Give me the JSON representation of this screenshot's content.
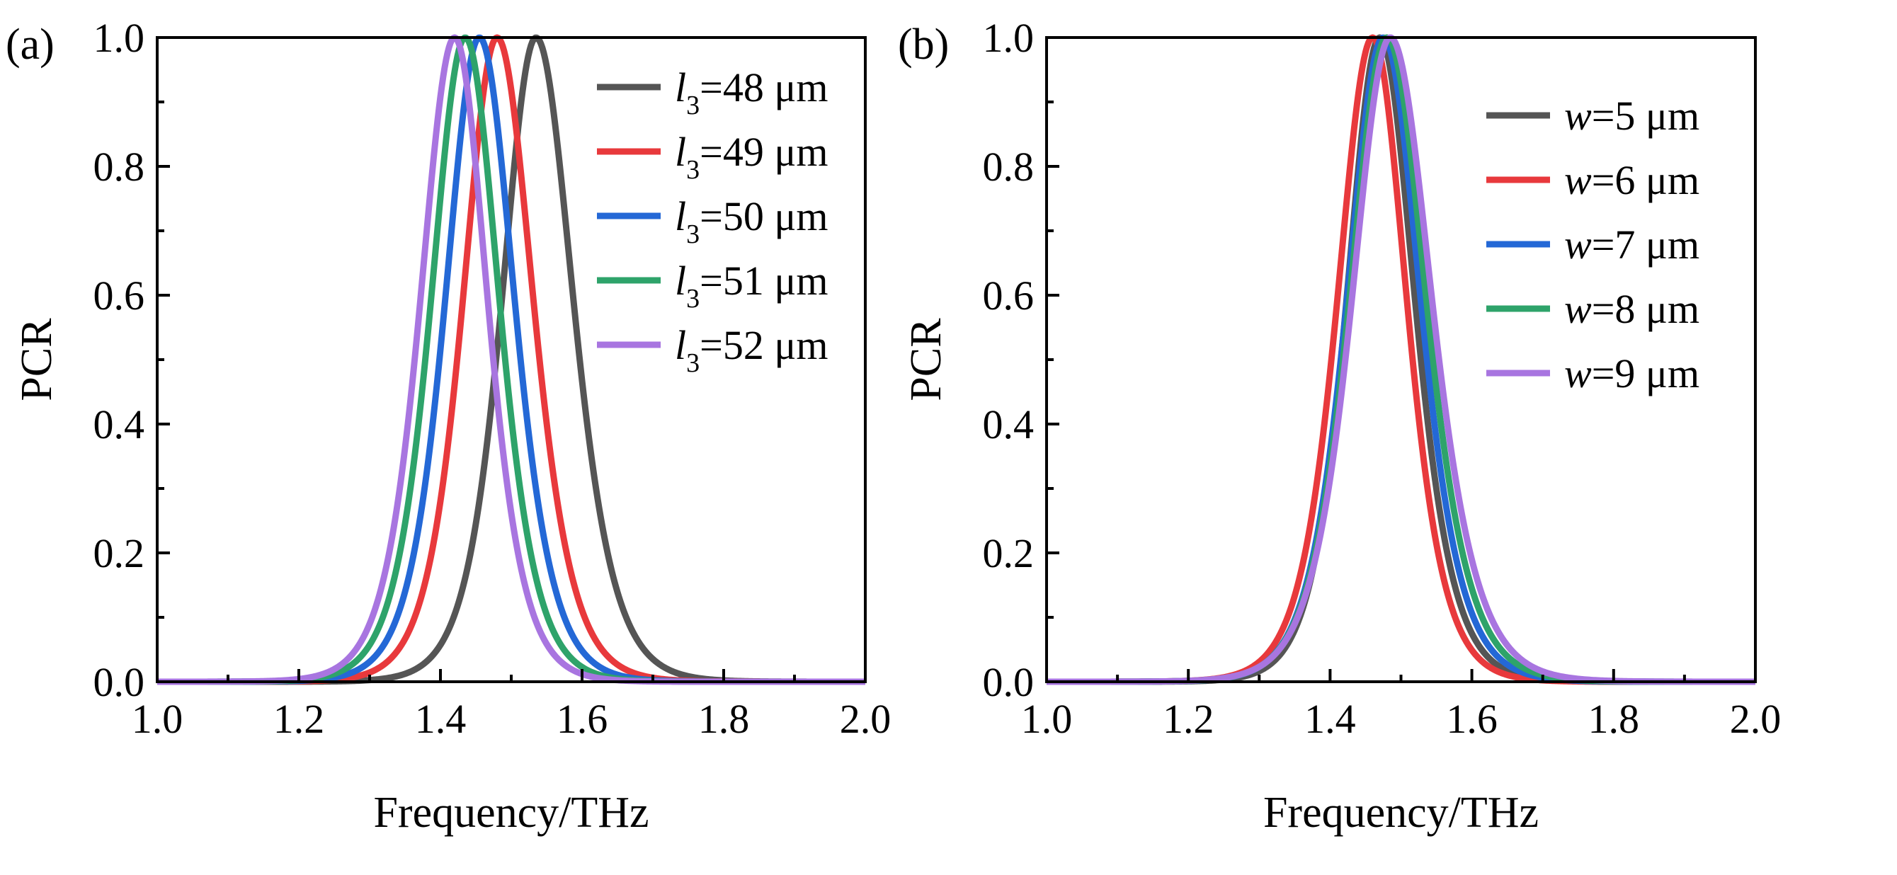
{
  "chart_data": [
    {
      "type": "line",
      "panel_label": "(a)",
      "xlabel": "Frequency/THz",
      "ylabel": "PCR",
      "xlim": [
        1.0,
        2.0
      ],
      "ylim": [
        0.0,
        1.0
      ],
      "xticks": [
        "1.0",
        "1.2",
        "1.4",
        "1.6",
        "1.8",
        "2.0"
      ],
      "yticks": [
        "0.0",
        "0.2",
        "0.4",
        "0.6",
        "0.8",
        "1.0"
      ],
      "grid": false,
      "legend_position": "top-right",
      "series": [
        {
          "name": "l3=48 μm",
          "legend_var": "l",
          "legend_sub": "3",
          "legend_rest": "=48 μm",
          "color": "#555555",
          "peak": 1.535,
          "sigma_left": 0.064,
          "sigma_right": 0.07
        },
        {
          "name": "l3=49 μm",
          "legend_var": "l",
          "legend_sub": "3",
          "legend_rest": "=49 μm",
          "color": "#e8393c",
          "peak": 1.48,
          "sigma_left": 0.064,
          "sigma_right": 0.068
        },
        {
          "name": "l3=50 μm",
          "legend_var": "l",
          "legend_sub": "3",
          "legend_rest": "=50 μm",
          "color": "#2468d6",
          "peak": 1.455,
          "sigma_left": 0.064,
          "sigma_right": 0.066
        },
        {
          "name": "l3=51 μm",
          "legend_var": "l",
          "legend_sub": "3",
          "legend_rest": "=51 μm",
          "color": "#2ea36a",
          "peak": 1.435,
          "sigma_left": 0.064,
          "sigma_right": 0.064
        },
        {
          "name": "l3=52 μm",
          "legend_var": "l",
          "legend_sub": "3",
          "legend_rest": "=52 μm",
          "color": "#a875e0",
          "peak": 1.42,
          "sigma_left": 0.064,
          "sigma_right": 0.062
        }
      ]
    },
    {
      "type": "line",
      "panel_label": "(b)",
      "xlabel": "Frequency/THz",
      "ylabel": "PCR",
      "xlim": [
        1.0,
        2.0
      ],
      "ylim": [
        0.0,
        1.0
      ],
      "xticks": [
        "1.0",
        "1.2",
        "1.4",
        "1.6",
        "1.8",
        "2.0"
      ],
      "yticks": [
        "0.0",
        "0.2",
        "0.4",
        "0.6",
        "0.8",
        "1.0"
      ],
      "grid": false,
      "legend_position": "top-right",
      "series": [
        {
          "name": "w=5 μm",
          "legend_var": "w",
          "legend_sub": "",
          "legend_rest": "=5 μm",
          "color": "#555555",
          "peak": 1.47,
          "sigma_left": 0.062,
          "sigma_right": 0.066
        },
        {
          "name": "w=6 μm",
          "legend_var": "w",
          "legend_sub": "",
          "legend_rest": "=6 μm",
          "color": "#e8393c",
          "peak": 1.46,
          "sigma_left": 0.066,
          "sigma_right": 0.064
        },
        {
          "name": "w=7 μm",
          "legend_var": "w",
          "legend_sub": "",
          "legend_rest": "=7 μm",
          "color": "#2468d6",
          "peak": 1.475,
          "sigma_left": 0.068,
          "sigma_right": 0.07
        },
        {
          "name": "w=8 μm",
          "legend_var": "w",
          "legend_sub": "",
          "legend_rest": "=8 μm",
          "color": "#2ea36a",
          "peak": 1.48,
          "sigma_left": 0.07,
          "sigma_right": 0.074
        },
        {
          "name": "w=9 μm",
          "legend_var": "w",
          "legend_sub": "",
          "legend_rest": "=9 μm",
          "color": "#a875e0",
          "peak": 1.485,
          "sigma_left": 0.072,
          "sigma_right": 0.078
        }
      ]
    }
  ]
}
